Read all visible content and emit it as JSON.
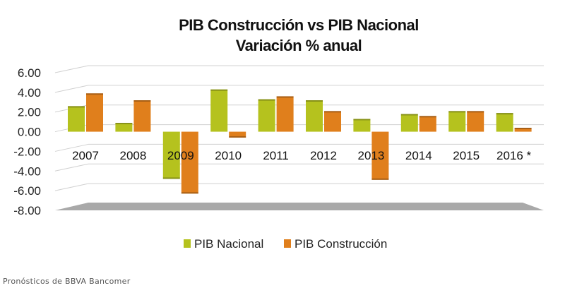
{
  "chart_data": {
    "type": "bar",
    "title": "PIB Construcción vs PIB Nacional",
    "subtitle": "Variación % anual",
    "categories": [
      "2007",
      "2008",
      "2009",
      "2010",
      "2011",
      "2012",
      "2013",
      "2014",
      "2015",
      "2016 *"
    ],
    "series": [
      {
        "name": "PIB Nacional",
        "color": "#b5c21e",
        "values": [
          2.6,
          0.9,
          -4.8,
          4.3,
          3.3,
          3.2,
          1.3,
          1.8,
          2.1,
          1.9
        ]
      },
      {
        "name": "PIB Construcción",
        "color": "#e07f1c",
        "values": [
          3.9,
          3.2,
          -6.3,
          -0.6,
          3.6,
          2.1,
          -4.9,
          1.6,
          2.1,
          0.4
        ]
      }
    ],
    "y_ticks": [
      "6.00",
      "4.00",
      "2.00",
      "0.00",
      "-2.00",
      "-4.00",
      "-6.00",
      "-8.00"
    ],
    "ylim": [
      -8,
      6
    ],
    "xlabel": "",
    "ylabel": "",
    "grid": true,
    "legend_position": "bottom"
  },
  "footer": "Pronósticos de BBVA Bancomer"
}
